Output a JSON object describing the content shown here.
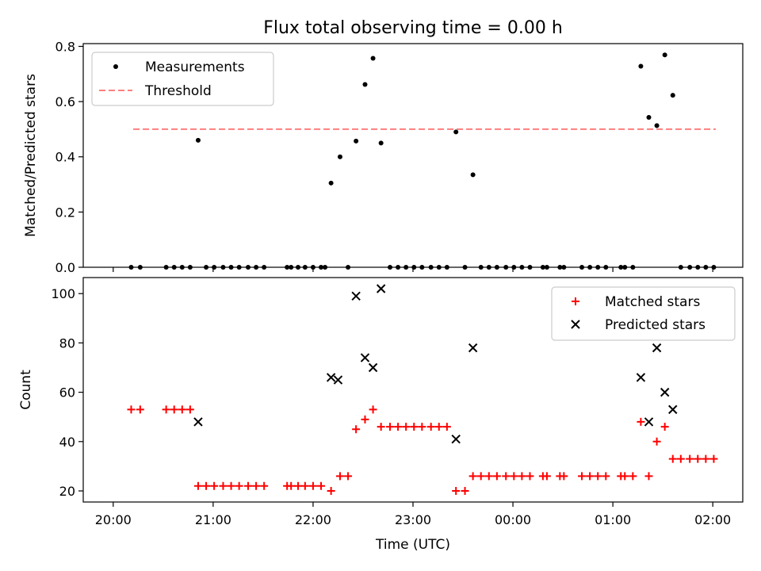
{
  "figure": {
    "title": "Flux total observing time = 0.00 h",
    "xlabel": "Time (UTC)",
    "xticks": [
      "20:00",
      "21:00",
      "22:00",
      "23:00",
      "00:00",
      "01:00",
      "02:00"
    ]
  },
  "colors": {
    "measurement": "#000000",
    "threshold": "#ff7f7f",
    "matched": "#ff0000",
    "predicted": "#000000"
  },
  "chart_data": [
    {
      "type": "scatter",
      "title": "Flux total observing time = 0.00 h",
      "xlabel": "",
      "ylabel": "Matched/Predicted stars",
      "x_unit": "hours after 20:00 UTC",
      "xlim": [
        -0.3,
        6.3
      ],
      "ylim": [
        0,
        0.81
      ],
      "yticks": [
        "0.0",
        "0.2",
        "0.4",
        "0.6",
        "0.8"
      ],
      "ytick_values": [
        0,
        0.2,
        0.4,
        0.6,
        0.8
      ],
      "grid": false,
      "legend": {
        "location": "upper left",
        "entries": [
          "Measurements",
          "Threshold"
        ]
      },
      "threshold": {
        "name": "Threshold",
        "value": 0.5,
        "x_range": [
          0.2,
          6.03
        ]
      },
      "series": [
        {
          "name": "Measurements",
          "points": [
            [
              0.18,
              0
            ],
            [
              0.27,
              0
            ],
            [
              0.53,
              0
            ],
            [
              0.61,
              0
            ],
            [
              0.69,
              0
            ],
            [
              0.77,
              0
            ],
            [
              0.85,
              0.46
            ],
            [
              0.93,
              0
            ],
            [
              1.01,
              0
            ],
            [
              1.1,
              0
            ],
            [
              1.18,
              0
            ],
            [
              1.26,
              0
            ],
            [
              1.35,
              0
            ],
            [
              1.43,
              0
            ],
            [
              1.51,
              0
            ],
            [
              1.74,
              0
            ],
            [
              1.78,
              0
            ],
            [
              1.85,
              0
            ],
            [
              1.92,
              0
            ],
            [
              2.0,
              0
            ],
            [
              2.08,
              0
            ],
            [
              2.12,
              0
            ],
            [
              2.18,
              0.305
            ],
            [
              2.27,
              0.4
            ],
            [
              2.35,
              0
            ],
            [
              2.43,
              0.457
            ],
            [
              2.52,
              0.662
            ],
            [
              2.6,
              0.757
            ],
            [
              2.68,
              0.45
            ],
            [
              2.77,
              0
            ],
            [
              2.85,
              0
            ],
            [
              2.93,
              0
            ],
            [
              3.01,
              0
            ],
            [
              3.09,
              0
            ],
            [
              3.18,
              0
            ],
            [
              3.26,
              0
            ],
            [
              3.34,
              0
            ],
            [
              3.43,
              0.49
            ],
            [
              3.52,
              0
            ],
            [
              3.6,
              0.335
            ],
            [
              3.68,
              0
            ],
            [
              3.76,
              0
            ],
            [
              3.84,
              0
            ],
            [
              3.93,
              0
            ],
            [
              4.01,
              0
            ],
            [
              4.09,
              0
            ],
            [
              4.17,
              0
            ],
            [
              4.3,
              0
            ],
            [
              4.34,
              0
            ],
            [
              4.47,
              0
            ],
            [
              4.51,
              0
            ],
            [
              4.69,
              0
            ],
            [
              4.77,
              0
            ],
            [
              4.85,
              0
            ],
            [
              4.93,
              0
            ],
            [
              5.08,
              0
            ],
            [
              5.12,
              0
            ],
            [
              5.2,
              0
            ],
            [
              5.28,
              0.728
            ],
            [
              5.36,
              0.543
            ],
            [
              5.44,
              0.513
            ],
            [
              5.52,
              0.769
            ],
            [
              5.6,
              0.623
            ],
            [
              5.68,
              0
            ],
            [
              5.77,
              0
            ],
            [
              5.85,
              0
            ],
            [
              5.93,
              0
            ],
            [
              6.01,
              0
            ]
          ]
        }
      ]
    },
    {
      "type": "scatter",
      "xlabel": "Time (UTC)",
      "ylabel": "Count",
      "x_unit": "hours after 20:00 UTC",
      "xlim": [
        -0.3,
        6.3
      ],
      "ylim": [
        15.5,
        106.5
      ],
      "yticks": [
        "20",
        "40",
        "60",
        "80",
        "100"
      ],
      "ytick_values": [
        20,
        40,
        60,
        80,
        100
      ],
      "grid": false,
      "legend": {
        "location": "upper right",
        "entries": [
          "Matched stars",
          "Predicted stars"
        ]
      },
      "series": [
        {
          "name": "Matched stars",
          "marker": "plus",
          "points": [
            [
              0.18,
              53
            ],
            [
              0.27,
              53
            ],
            [
              0.53,
              53
            ],
            [
              0.61,
              53
            ],
            [
              0.69,
              53
            ],
            [
              0.77,
              53
            ],
            [
              0.85,
              22
            ],
            [
              0.93,
              22
            ],
            [
              1.01,
              22
            ],
            [
              1.1,
              22
            ],
            [
              1.18,
              22
            ],
            [
              1.26,
              22
            ],
            [
              1.35,
              22
            ],
            [
              1.43,
              22
            ],
            [
              1.51,
              22
            ],
            [
              1.74,
              22
            ],
            [
              1.78,
              22
            ],
            [
              1.85,
              22
            ],
            [
              1.92,
              22
            ],
            [
              2.0,
              22
            ],
            [
              2.08,
              22
            ],
            [
              2.18,
              20
            ],
            [
              2.27,
              26
            ],
            [
              2.35,
              26
            ],
            [
              2.43,
              45
            ],
            [
              2.52,
              49
            ],
            [
              2.6,
              53
            ],
            [
              2.68,
              46
            ],
            [
              2.77,
              46
            ],
            [
              2.85,
              46
            ],
            [
              2.93,
              46
            ],
            [
              3.01,
              46
            ],
            [
              3.09,
              46
            ],
            [
              3.18,
              46
            ],
            [
              3.26,
              46
            ],
            [
              3.34,
              46
            ],
            [
              3.43,
              20
            ],
            [
              3.52,
              20
            ],
            [
              3.6,
              26
            ],
            [
              3.68,
              26
            ],
            [
              3.76,
              26
            ],
            [
              3.84,
              26
            ],
            [
              3.93,
              26
            ],
            [
              4.01,
              26
            ],
            [
              4.09,
              26
            ],
            [
              4.17,
              26
            ],
            [
              4.3,
              26
            ],
            [
              4.34,
              26
            ],
            [
              4.47,
              26
            ],
            [
              4.51,
              26
            ],
            [
              4.69,
              26
            ],
            [
              4.77,
              26
            ],
            [
              4.85,
              26
            ],
            [
              4.93,
              26
            ],
            [
              5.08,
              26
            ],
            [
              5.12,
              26
            ],
            [
              5.2,
              26
            ],
            [
              5.28,
              48
            ],
            [
              5.36,
              26
            ],
            [
              5.44,
              40
            ],
            [
              5.52,
              46
            ],
            [
              5.6,
              33
            ],
            [
              5.68,
              33
            ],
            [
              5.77,
              33
            ],
            [
              5.85,
              33
            ],
            [
              5.93,
              33
            ],
            [
              6.01,
              33
            ]
          ]
        },
        {
          "name": "Predicted stars",
          "marker": "x",
          "points": [
            [
              0.85,
              48
            ],
            [
              2.18,
              66
            ],
            [
              2.25,
              65
            ],
            [
              2.43,
              99
            ],
            [
              2.52,
              74
            ],
            [
              2.6,
              70
            ],
            [
              2.68,
              102
            ],
            [
              3.43,
              41
            ],
            [
              3.6,
              78
            ],
            [
              5.28,
              66
            ],
            [
              5.36,
              48
            ],
            [
              5.44,
              78
            ],
            [
              5.52,
              60
            ],
            [
              5.6,
              53
            ]
          ]
        }
      ]
    }
  ]
}
